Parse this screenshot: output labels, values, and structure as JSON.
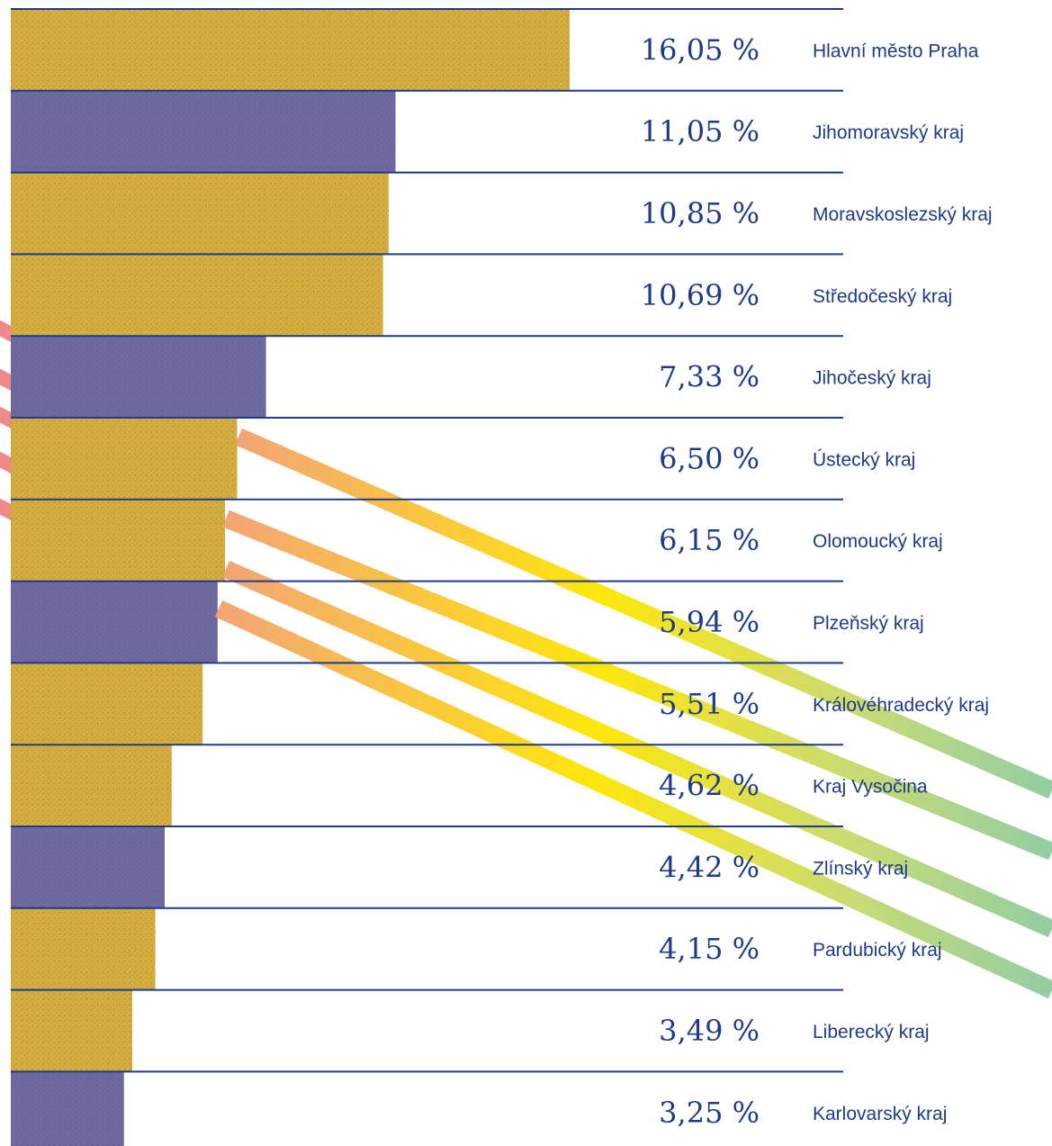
{
  "chart_data": {
    "type": "bar",
    "orientation": "horizontal",
    "categories": [
      "Hlavní město Praha",
      "Jihomoravský kraj",
      "Moravskoslezský kraj",
      "Středočeský kraj",
      "Jihočeský kraj",
      "Ústecký kraj",
      "Olomoucký kraj",
      "Plzeňský kraj",
      "Královéhradecký kraj",
      "Kraj Vysočina",
      "Zlínský kraj",
      "Pardubický kraj",
      "Liberecký kraj",
      "Karlovarský kraj"
    ],
    "values": [
      16.05,
      11.05,
      10.85,
      10.69,
      7.33,
      6.5,
      6.15,
      5.94,
      5.51,
      4.62,
      4.42,
      4.15,
      3.49,
      3.25
    ],
    "value_labels": [
      "16,05 %",
      "11,05 %",
      "10,85 %",
      "10,69 %",
      "7,33 %",
      "6,50 %",
      "6,15 %",
      "5,94 %",
      "5,51 %",
      "4,62 %",
      "4,42 %",
      "4,15 %",
      "3,49 %",
      "3,25 %"
    ],
    "title": "",
    "xlabel": "",
    "ylabel": "",
    "xlim": [
      0,
      16.05
    ],
    "grid": false
  },
  "colors": {
    "bar_gold": "#d6ae3c",
    "bar_blue": "#6e6aa0",
    "rule_line": "#1f3a8a",
    "text": "#1f3a8a",
    "stripe_start": "#f08a8a",
    "stripe_mid": "#ffe000",
    "stripe_end": "#8fcf9e"
  }
}
